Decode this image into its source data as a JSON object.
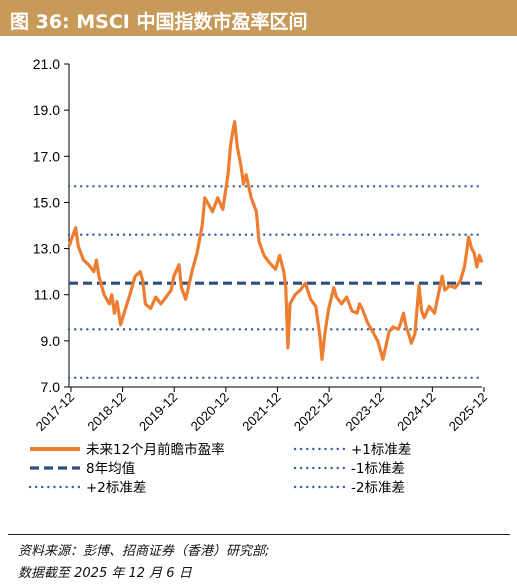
{
  "title": "图 36:  MSCI 中国指数市盈率区间",
  "source": {
    "line1": "资料来源：彭博、招商证券（香港）研究部;",
    "line2": "数据截至 2025 年 12 月 6 日"
  },
  "colors": {
    "header_bg": "#c89a5a",
    "pe_line": "#ed7d31",
    "mean_line": "#2f4f7c",
    "std_lines": "#3a5fa0"
  },
  "chart_data": {
    "type": "line",
    "y_ticks": [
      "7.0",
      "9.0",
      "11.0",
      "13.0",
      "15.0",
      "17.0",
      "19.0",
      "21.0"
    ],
    "ylim": [
      7,
      21
    ],
    "x_ticks": [
      "2017-12",
      "2018-12",
      "2019-12",
      "2020-12",
      "2021-12",
      "2022-12",
      "2023-12",
      "2024-12",
      "2025-12"
    ],
    "xlim": [
      2017.92,
      2025.92
    ],
    "series": [
      {
        "name": "未来12个月前瞻市盈率",
        "points": [
          [
            2017.92,
            13.1
          ],
          [
            2018.0,
            13.6
          ],
          [
            2018.05,
            13.9
          ],
          [
            2018.1,
            13.1
          ],
          [
            2018.2,
            12.5
          ],
          [
            2018.3,
            12.3
          ],
          [
            2018.4,
            12.0
          ],
          [
            2018.45,
            12.5
          ],
          [
            2018.5,
            11.8
          ],
          [
            2018.6,
            11.0
          ],
          [
            2018.7,
            10.6
          ],
          [
            2018.75,
            11.0
          ],
          [
            2018.8,
            10.2
          ],
          [
            2018.85,
            10.7
          ],
          [
            2018.92,
            9.7
          ],
          [
            2019.0,
            10.3
          ],
          [
            2019.1,
            11.0
          ],
          [
            2019.2,
            11.8
          ],
          [
            2019.3,
            12.0
          ],
          [
            2019.35,
            11.6
          ],
          [
            2019.4,
            10.6
          ],
          [
            2019.5,
            10.4
          ],
          [
            2019.6,
            10.9
          ],
          [
            2019.7,
            10.6
          ],
          [
            2019.8,
            10.9
          ],
          [
            2019.9,
            11.2
          ],
          [
            2019.95,
            11.8
          ],
          [
            2020.05,
            12.3
          ],
          [
            2020.1,
            11.3
          ],
          [
            2020.18,
            10.8
          ],
          [
            2020.3,
            12.0
          ],
          [
            2020.4,
            12.8
          ],
          [
            2020.5,
            14.0
          ],
          [
            2020.55,
            15.2
          ],
          [
            2020.6,
            15.0
          ],
          [
            2020.7,
            14.6
          ],
          [
            2020.8,
            15.2
          ],
          [
            2020.9,
            14.7
          ],
          [
            2021.0,
            16.2
          ],
          [
            2021.05,
            17.5
          ],
          [
            2021.1,
            18.2
          ],
          [
            2021.13,
            18.5
          ],
          [
            2021.18,
            17.4
          ],
          [
            2021.25,
            16.6
          ],
          [
            2021.3,
            15.8
          ],
          [
            2021.35,
            16.2
          ],
          [
            2021.45,
            15.2
          ],
          [
            2021.55,
            14.6
          ],
          [
            2021.6,
            13.3
          ],
          [
            2021.7,
            12.7
          ],
          [
            2021.8,
            12.4
          ],
          [
            2021.92,
            12.1
          ],
          [
            2022.0,
            12.7
          ],
          [
            2022.08,
            12.0
          ],
          [
            2022.12,
            11.3
          ],
          [
            2022.16,
            8.7
          ],
          [
            2022.2,
            10.6
          ],
          [
            2022.3,
            11.0
          ],
          [
            2022.4,
            11.2
          ],
          [
            2022.5,
            11.5
          ],
          [
            2022.6,
            10.8
          ],
          [
            2022.7,
            10.5
          ],
          [
            2022.78,
            9.2
          ],
          [
            2022.82,
            8.2
          ],
          [
            2022.88,
            9.4
          ],
          [
            2022.95,
            10.4
          ],
          [
            2023.05,
            11.3
          ],
          [
            2023.1,
            10.9
          ],
          [
            2023.2,
            10.6
          ],
          [
            2023.3,
            10.9
          ],
          [
            2023.4,
            10.3
          ],
          [
            2023.5,
            10.2
          ],
          [
            2023.55,
            10.6
          ],
          [
            2023.6,
            10.4
          ],
          [
            2023.7,
            9.8
          ],
          [
            2023.8,
            9.4
          ],
          [
            2023.9,
            9.0
          ],
          [
            2023.95,
            8.6
          ],
          [
            2024.0,
            8.2
          ],
          [
            2024.05,
            8.7
          ],
          [
            2024.12,
            9.4
          ],
          [
            2024.2,
            9.6
          ],
          [
            2024.3,
            9.5
          ],
          [
            2024.35,
            9.8
          ],
          [
            2024.4,
            10.2
          ],
          [
            2024.45,
            9.6
          ],
          [
            2024.5,
            9.3
          ],
          [
            2024.55,
            8.9
          ],
          [
            2024.62,
            9.3
          ],
          [
            2024.7,
            11.4
          ],
          [
            2024.75,
            10.3
          ],
          [
            2024.8,
            10.0
          ],
          [
            2024.9,
            10.5
          ],
          [
            2025.0,
            10.2
          ],
          [
            2025.1,
            11.3
          ],
          [
            2025.15,
            11.8
          ],
          [
            2025.2,
            11.2
          ],
          [
            2025.3,
            11.4
          ],
          [
            2025.4,
            11.3
          ],
          [
            2025.5,
            11.6
          ],
          [
            2025.58,
            12.2
          ],
          [
            2025.62,
            12.8
          ],
          [
            2025.66,
            13.5
          ],
          [
            2025.72,
            13.0
          ],
          [
            2025.77,
            12.8
          ],
          [
            2025.82,
            12.2
          ],
          [
            2025.87,
            12.7
          ],
          [
            2025.92,
            12.4
          ]
        ]
      },
      {
        "name": "8年均值",
        "value": 11.5
      },
      {
        "name": "+1标准差",
        "value": 13.6
      },
      {
        "name": "-1标准差",
        "value": 9.5
      },
      {
        "name": "+2标准差",
        "value": 15.7
      },
      {
        "name": "-2标准差",
        "value": 7.4
      }
    ],
    "legend": [
      {
        "label": "未来12个月前瞻市盈率",
        "style": "solid-orange"
      },
      {
        "label": "+1标准差",
        "style": "dotted"
      },
      {
        "label": "8年均值",
        "style": "dashed"
      },
      {
        "label": "-1标准差",
        "style": "dotted"
      },
      {
        "label": "+2标准差",
        "style": "dotted"
      },
      {
        "label": "-2标准差",
        "style": "dotted"
      }
    ],
    "grid": false,
    "legend_position": "bottom"
  }
}
